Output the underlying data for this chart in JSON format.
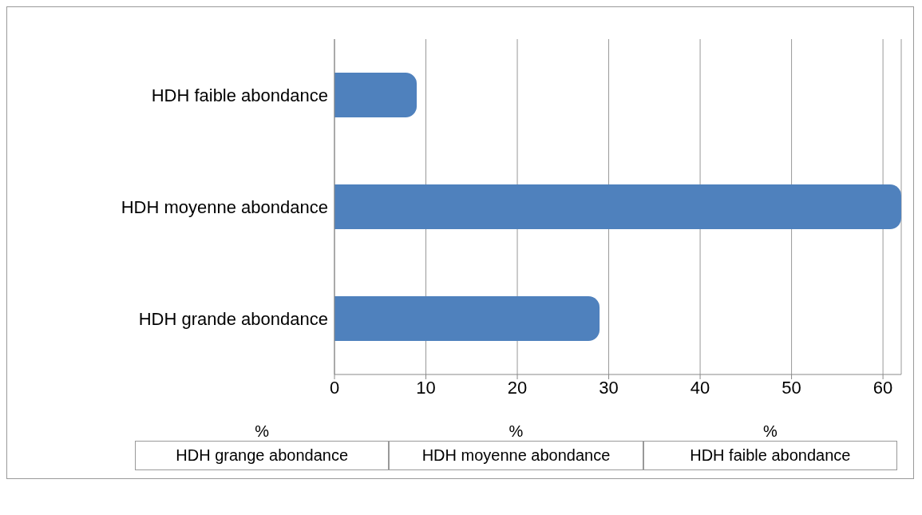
{
  "chart_data": {
    "type": "bar",
    "orientation": "horizontal",
    "categories": [
      "HDH faible abondance",
      "HDH moyenne abondance",
      "HDH grande abondance"
    ],
    "values": [
      9,
      62,
      29
    ],
    "color": "#4f81bd",
    "xlim": [
      0,
      62
    ],
    "xticks": [
      0,
      10,
      20,
      30,
      40,
      50,
      60
    ],
    "grid": "x",
    "annotations": [
      "%",
      "%",
      "%",
      "HDH grange abondance",
      "HDH moyenne abondance",
      "HDH faible abondance"
    ]
  }
}
